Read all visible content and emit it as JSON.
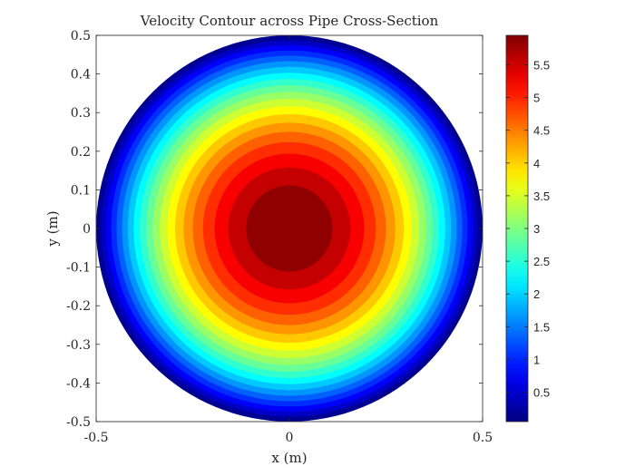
{
  "chart_data": {
    "type": "contour",
    "title": "Velocity Contour across Pipe Cross-Section",
    "xlabel": "x (m)",
    "ylabel": "y (m)",
    "xlim": [
      -0.5,
      0.5
    ],
    "ylim": [
      -0.5,
      0.5
    ],
    "x_ticks": [
      "-0.5",
      "0",
      "0.5"
    ],
    "y_ticks": [
      "0.5",
      "0.4",
      "0.3",
      "0.2",
      "0.1",
      "0",
      "-0.1",
      "-0.2",
      "-0.3",
      "-0.4",
      "-0.5"
    ],
    "field": {
      "description": "parabolic pipe-flow profile",
      "pipe_radius": 0.5,
      "v_max": 6,
      "v_min": 0,
      "contour_levels": 20,
      "colormap": "jet"
    },
    "colorbar": {
      "range": [
        0.05,
        5.95
      ],
      "ticks": [
        "5.5",
        "5",
        "4.5",
        "4",
        "3.5",
        "3",
        "2.5",
        "2",
        "1.5",
        "1",
        "0.5"
      ]
    },
    "grid": false,
    "legend": "none"
  }
}
